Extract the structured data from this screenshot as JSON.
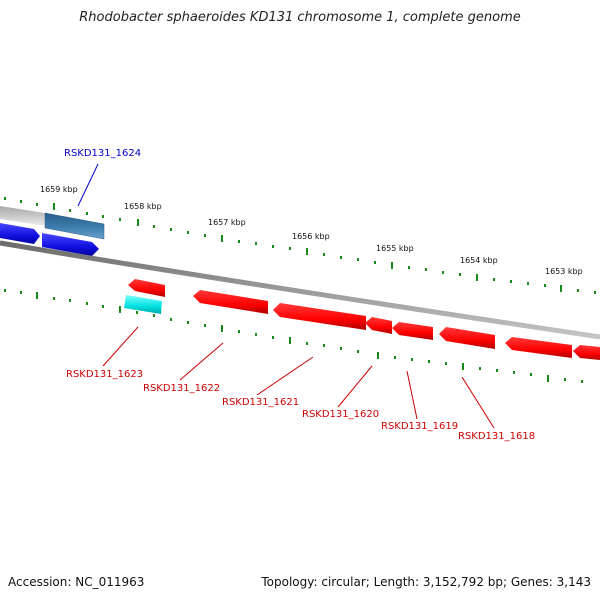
{
  "title": "Rhodobacter sphaeroides KD131 chromosome 1, complete genome",
  "footer": {
    "accession": "Accession: NC_011963",
    "topology": "Topology: circular; Length: 3,152,792 bp; Genes: 3,143"
  },
  "colors": {
    "backbone": "#8a8a8a",
    "tick": "#1a8a1a",
    "forward_gene": "#1010e0",
    "forward_gene_dark": "#0000a0",
    "reverse_gene": "#ff0000",
    "reverse_gene_dark": "#b00000",
    "cyan_gene": "#00e0e0",
    "steel_gene": "#3a7aaa",
    "grey_gene": "#c8c8c8",
    "forward_label": "#0000cc",
    "reverse_label": "#cc0000"
  },
  "ruler_labels": [
    "1659 kbp",
    "1658 kbp",
    "1657 kbp",
    "1656 kbp",
    "1655 kbp",
    "1654 kbp",
    "1653 kbp"
  ],
  "gene_labels": {
    "forward": [
      "RSKD131_1624"
    ],
    "reverse": [
      "RSKD131_1623",
      "RSKD131_1622",
      "RSKD131_1621",
      "RSKD131_1620",
      "RSKD131_1619",
      "RSKD131_1618"
    ]
  }
}
